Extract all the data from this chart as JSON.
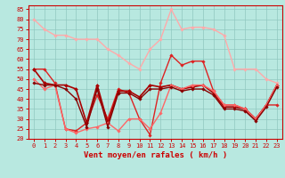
{
  "xlabel": "Vent moyen/en rafales ( km/h )",
  "bg_color": "#b8e8e0",
  "grid_color": "#90c8c0",
  "xlim": [
    -0.5,
    23.5
  ],
  "ylim": [
    20,
    87
  ],
  "yticks": [
    20,
    25,
    30,
    35,
    40,
    45,
    50,
    55,
    60,
    65,
    70,
    75,
    80,
    85
  ],
  "xticks": [
    0,
    1,
    2,
    3,
    4,
    5,
    6,
    7,
    8,
    9,
    10,
    11,
    12,
    13,
    14,
    15,
    16,
    17,
    18,
    19,
    20,
    21,
    22,
    23
  ],
  "lines": [
    {
      "x": [
        0,
        1,
        2,
        3,
        4,
        5,
        6,
        7,
        8,
        9,
        10,
        11,
        12,
        13,
        14,
        15,
        16,
        17,
        18,
        19,
        20,
        21,
        22,
        23
      ],
      "y": [
        80,
        75,
        72,
        72,
        70,
        70,
        70,
        65,
        62,
        58,
        55,
        65,
        70,
        85,
        75,
        76,
        76,
        75,
        72,
        55,
        55,
        55,
        50,
        48
      ],
      "color": "#ffaaaa",
      "lw": 1.0,
      "marker": "D",
      "ms": 1.8
    },
    {
      "x": [
        0,
        1,
        2,
        3,
        4,
        5,
        6,
        7,
        8,
        9,
        10,
        11,
        12,
        13,
        14,
        15,
        16,
        17,
        18,
        19,
        20,
        21,
        22,
        23
      ],
      "y": [
        55,
        55,
        48,
        25,
        24,
        28,
        42,
        30,
        45,
        43,
        30,
        22,
        48,
        62,
        57,
        59,
        59,
        44,
        37,
        37,
        35,
        30,
        37,
        37
      ],
      "color": "#dd2222",
      "lw": 1.0,
      "marker": "D",
      "ms": 1.8
    },
    {
      "x": [
        0,
        1,
        2,
        3,
        4,
        5,
        6,
        7,
        8,
        9,
        10,
        11,
        12,
        13,
        14,
        15,
        16,
        17,
        18,
        19,
        20,
        21,
        22,
        23
      ],
      "y": [
        55,
        48,
        47,
        47,
        45,
        28,
        47,
        28,
        44,
        44,
        41,
        47,
        46,
        47,
        45,
        46,
        47,
        43,
        36,
        36,
        35,
        30,
        37,
        47
      ],
      "color": "#aa0000",
      "lw": 1.2,
      "marker": "D",
      "ms": 2.0
    },
    {
      "x": [
        0,
        1,
        2,
        3,
        4,
        5,
        6,
        7,
        8,
        9,
        10,
        11,
        12,
        13,
        14,
        15,
        16,
        17,
        18,
        19,
        20,
        21,
        22,
        23
      ],
      "y": [
        50,
        45,
        47,
        25,
        23,
        25,
        26,
        28,
        24,
        30,
        30,
        25,
        33,
        47,
        45,
        47,
        47,
        44,
        37,
        37,
        35,
        30,
        37,
        47
      ],
      "color": "#ff6666",
      "lw": 1.0,
      "marker": "D",
      "ms": 1.8
    },
    {
      "x": [
        0,
        1,
        2,
        3,
        4,
        5,
        6,
        7,
        8,
        9,
        10,
        11,
        12,
        13,
        14,
        15,
        16,
        17,
        18,
        19,
        20,
        21,
        22,
        23
      ],
      "y": [
        48,
        47,
        47,
        45,
        40,
        26,
        45,
        26,
        43,
        43,
        40,
        45,
        45,
        46,
        44,
        45,
        45,
        42,
        35,
        35,
        34,
        29,
        36,
        46
      ],
      "color": "#880000",
      "lw": 1.0,
      "marker": "D",
      "ms": 1.8
    }
  ],
  "tick_color": "#cc0000",
  "label_color": "#cc0000",
  "axis_color": "#cc0000",
  "tick_fontsize": 5.0,
  "xlabel_fontsize": 6.5
}
